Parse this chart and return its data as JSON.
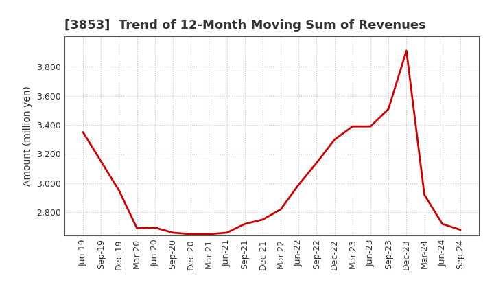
{
  "title": "[3853]  Trend of 12-Month Moving Sum of Revenues",
  "ylabel": "Amount (million yen)",
  "line_color": "#cc0000",
  "line_width": 2.0,
  "background_color": "#ffffff",
  "grid_color": "#b0b0b0",
  "xlabels": [
    "Jun-19",
    "Sep-19",
    "Dec-19",
    "Mar-20",
    "Jun-20",
    "Sep-20",
    "Dec-20",
    "Mar-21",
    "Jun-21",
    "Sep-21",
    "Dec-21",
    "Mar-22",
    "Jun-22",
    "Sep-22",
    "Dec-22",
    "Mar-23",
    "Jun-23",
    "Sep-23",
    "Dec-23",
    "Mar-24",
    "Jun-24",
    "Sep-24"
  ],
  "values": [
    3350,
    3150,
    2950,
    2690,
    2695,
    2660,
    2650,
    2650,
    2660,
    2720,
    2750,
    2820,
    2990,
    3140,
    3300,
    3390,
    3390,
    3510,
    3910,
    2920,
    2720,
    2680
  ],
  "ylim": [
    2640,
    4010
  ],
  "yticks": [
    2800,
    3000,
    3200,
    3400,
    3600,
    3800
  ],
  "title_fontsize": 13,
  "axis_label_fontsize": 10,
  "tick_fontsize": 9,
  "title_color": "#333333"
}
